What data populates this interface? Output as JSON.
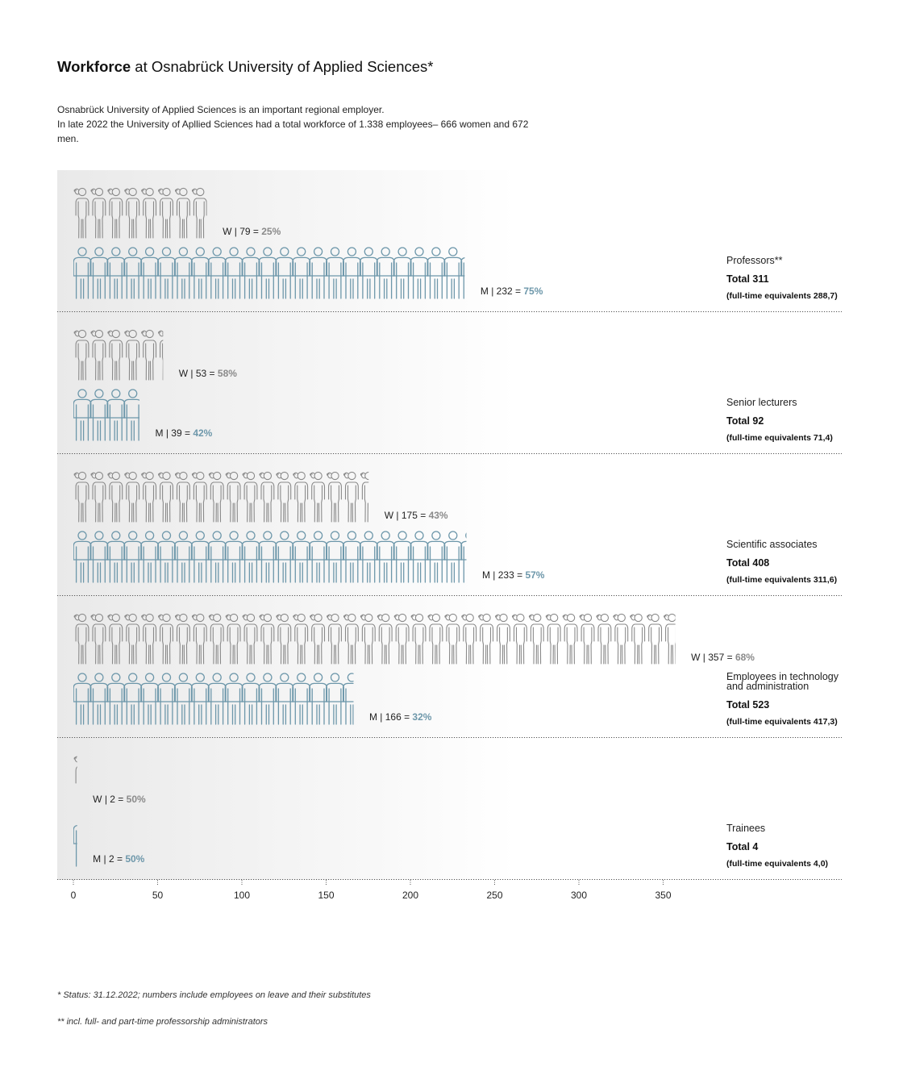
{
  "title": {
    "bold": "Workforce",
    "rest": " at Osnabrück University of Applied Sciences*"
  },
  "intro": {
    "line1": "Osnabrück University of Applied Sciences is an important regional employer.",
    "line2": "In late 2022 the University of Apllied Sciences had a total workforce of 1.338 employees– 666 women and 672 men."
  },
  "colors": {
    "women": "#8a8a8a",
    "men": "#6d97aa",
    "grid": "#555555",
    "text": "#222222"
  },
  "chart_data": {
    "type": "bar",
    "orientation": "horizontal",
    "unit_per_icon": 10,
    "xlim": [
      0,
      350
    ],
    "xticks": [
      0,
      50,
      100,
      150,
      200,
      250,
      300,
      350
    ],
    "categories": [
      "Professors**",
      "Senior lecturers",
      "Scientific associates",
      "Employees in technology and administration",
      "Trainees"
    ],
    "series": [
      {
        "name": "W",
        "values": [
          79,
          53,
          175,
          357,
          2
        ],
        "percent_labels": [
          "25%",
          "58%",
          "43%",
          "68%",
          "50%"
        ]
      },
      {
        "name": "M",
        "values": [
          232,
          39,
          233,
          166,
          2
        ],
        "percent_labels": [
          "75%",
          "42%",
          "57%",
          "32%",
          "50%"
        ]
      }
    ],
    "groups": [
      {
        "label_lines": [
          "Professors**"
        ],
        "total": "Total 311",
        "fte": "(full-time equivalents 288,7)"
      },
      {
        "label_lines": [
          "Senior lecturers"
        ],
        "total": "Total 92",
        "fte": "(full-time equivalents 71,4)"
      },
      {
        "label_lines": [
          "Scientific associates"
        ],
        "total": "Total 408",
        "fte": "(full-time equivalents 311,6)"
      },
      {
        "label_lines": [
          "Employees in technology",
          "and administration"
        ],
        "total": "Total 523",
        "fte": "(full-time equivalents 417,3)"
      },
      {
        "label_lines": [
          "Trainees"
        ],
        "total": "Total 4",
        "fte": "(full-time equivalents 4,0)"
      }
    ],
    "legend": "none",
    "grid": false
  },
  "footnotes": {
    "status": "* Status: 31.12.2022; numbers include employees on leave and their substitutes",
    "incl": "** incl. full- and part-time professorship administrators"
  }
}
